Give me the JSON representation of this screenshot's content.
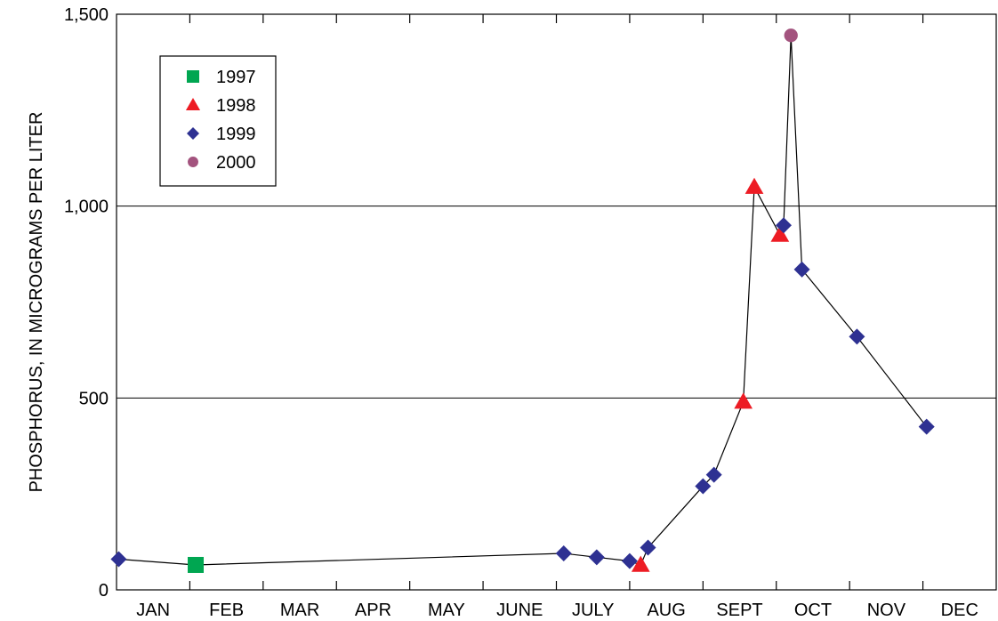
{
  "chart_data": {
    "type": "scatter",
    "title": "",
    "ylabel": "PHOSPHORUS, IN MICROGRAMS PER LITER",
    "xlabel": "",
    "ylim": [
      0,
      1500
    ],
    "yticks": [
      {
        "value": 0,
        "label": "0"
      },
      {
        "value": 500,
        "label": "500"
      },
      {
        "value": 1000,
        "label": "1,000"
      },
      {
        "value": 1500,
        "label": "1,500"
      }
    ],
    "months": [
      "JAN",
      "FEB",
      "MAR",
      "APR",
      "MAY",
      "JUNE",
      "JULY",
      "AUG",
      "SEPT",
      "OCT",
      "NOV",
      "DEC"
    ],
    "grid": "horizontal at 500 and 1,000",
    "legend_position": "top-left",
    "connecting_line": [
      [
        0.03,
        80
      ],
      [
        1.08,
        65
      ],
      [
        6.1,
        95
      ],
      [
        6.55,
        85
      ],
      [
        7.0,
        75
      ],
      [
        7.15,
        65
      ],
      [
        7.25,
        110
      ],
      [
        8.0,
        270
      ],
      [
        8.15,
        300
      ],
      [
        8.55,
        490
      ],
      [
        8.7,
        1050
      ],
      [
        9.05,
        925
      ],
      [
        9.1,
        950
      ],
      [
        9.2,
        1445
      ],
      [
        9.35,
        835
      ],
      [
        10.1,
        660
      ],
      [
        11.05,
        425
      ]
    ],
    "series": [
      {
        "name": "1997",
        "marker": "square",
        "color": "#00a651",
        "points": [
          [
            1.08,
            65
          ]
        ]
      },
      {
        "name": "1998",
        "marker": "triangle",
        "color": "#ed1c24",
        "points": [
          [
            7.15,
            65
          ],
          [
            8.55,
            490
          ],
          [
            8.7,
            1050
          ],
          [
            9.05,
            925
          ]
        ]
      },
      {
        "name": "1999",
        "marker": "diamond",
        "color": "#2e3192",
        "points": [
          [
            0.03,
            80
          ],
          [
            6.1,
            95
          ],
          [
            6.55,
            85
          ],
          [
            7.0,
            75
          ],
          [
            7.25,
            110
          ],
          [
            8.0,
            270
          ],
          [
            8.15,
            300
          ],
          [
            9.1,
            950
          ],
          [
            9.35,
            835
          ],
          [
            10.1,
            660
          ],
          [
            11.05,
            425
          ]
        ]
      },
      {
        "name": "2000",
        "marker": "circle",
        "color": "#a3537e",
        "points": [
          [
            9.2,
            1445
          ]
        ]
      }
    ]
  }
}
